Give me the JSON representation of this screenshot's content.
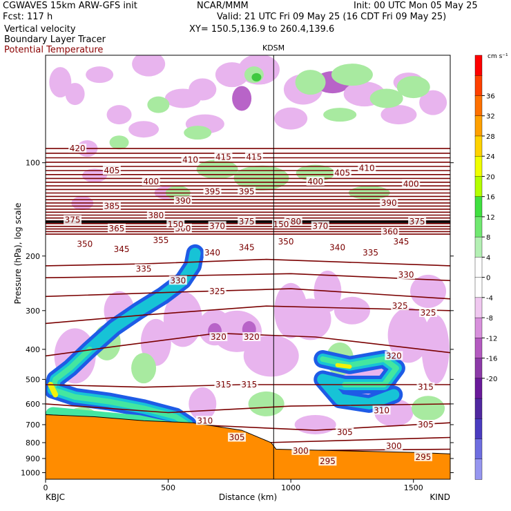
{
  "header": {
    "model": "CGWAVES 15km ARW-GFS init",
    "fcst": "Fcst:  117 h",
    "field1": "Vertical velocity",
    "field2": "Boundary Layer Tracer",
    "field3": "Potential Temperature",
    "org": "NCAR/MMM",
    "init": "Init: 00 UTC Mon 05 May 25",
    "valid": "Valid: 21 UTC Fri 09 May 25 (16 CDT Fri 09 May 25)",
    "xy": "XY= 150.5,136.9 to 260.4,139.6",
    "station_label": "KDSM"
  },
  "colors": {
    "theta": "#7a0000",
    "tracer_blue": "#1e5be6",
    "tracer_cyan": "#17c3d6",
    "tracer_green": "#44e6a0",
    "tracer_yellow": "#f2f20a",
    "terrain": "#ff8c00",
    "down_light": "#e8b4ee",
    "down_mid": "#b864c8",
    "up_light": "#a8eaa0",
    "up_mid": "#40c840"
  },
  "chart_data": {
    "type": "cross-section",
    "xlabel": "Distance (km)",
    "ylabel": "Pressure (hPa), log scale",
    "xlim": [
      0,
      1650
    ],
    "ylim": [
      1050,
      45
    ],
    "y_scale": "log",
    "xticks": [
      0,
      500,
      1000,
      1500
    ],
    "xtick_labels": [
      "0",
      "500",
      "1000",
      "1500"
    ],
    "yticks": [
      100,
      200,
      300,
      400,
      500,
      600,
      700,
      800,
      900,
      1000
    ],
    "ytick_labels": [
      "100",
      "200",
      "300",
      "400",
      "500",
      "600",
      "700",
      "800",
      "900",
      "1000"
    ],
    "left_station": "KBJC",
    "right_station": "KIND",
    "mid_station": "KDSM",
    "mid_station_x": 930,
    "colorbar": {
      "units": "cm s⁻¹",
      "labels": [
        "36",
        "32",
        "28",
        "24",
        "20",
        "16",
        "12",
        "8",
        "4",
        "0",
        "-4",
        "-8",
        "-12",
        "-16",
        "-20"
      ],
      "colors": [
        "#ff0000",
        "#ff4000",
        "#ff7000",
        "#ffa000",
        "#ffd200",
        "#f0ff00",
        "#b4ff00",
        "#40e040",
        "#70e870",
        "#b4f0b4",
        "#ffffff",
        "#ffffff",
        "#f0c8f0",
        "#d890dc",
        "#b45ac0",
        "#8c3aa8",
        "#6a1a9a",
        "#5028a0",
        "#4a3cc0",
        "#6e6ee0",
        "#9696f0"
      ]
    },
    "theta_labels": [
      {
        "x": 130,
        "p": 90,
        "t": "420"
      },
      {
        "x": 270,
        "p": 106,
        "t": "405"
      },
      {
        "x": 430,
        "p": 115,
        "t": "400"
      },
      {
        "x": 590,
        "p": 98,
        "t": "410"
      },
      {
        "x": 725,
        "p": 96,
        "t": "415"
      },
      {
        "x": 850,
        "p": 96,
        "t": "415"
      },
      {
        "x": 1100,
        "p": 115,
        "t": "400"
      },
      {
        "x": 1210,
        "p": 108,
        "t": "405"
      },
      {
        "x": 1310,
        "p": 104,
        "t": "410"
      },
      {
        "x": 1490,
        "p": 117,
        "t": "400"
      },
      {
        "x": 270,
        "p": 138,
        "t": "385"
      },
      {
        "x": 450,
        "p": 148,
        "t": "380"
      },
      {
        "x": 560,
        "p": 133,
        "t": "390"
      },
      {
        "x": 680,
        "p": 124,
        "t": "395"
      },
      {
        "x": 820,
        "p": 124,
        "t": "395"
      },
      {
        "x": 1400,
        "p": 135,
        "t": "390"
      },
      {
        "x": 110,
        "p": 153,
        "t": "375"
      },
      {
        "x": 290,
        "p": 163,
        "t": "365"
      },
      {
        "x": 560,
        "p": 163,
        "t": "360"
      },
      {
        "x": 700,
        "p": 160,
        "t": "370"
      },
      {
        "x": 820,
        "p": 155,
        "t": "375"
      },
      {
        "x": 1010,
        "p": 155,
        "t": "380"
      },
      {
        "x": 1120,
        "p": 160,
        "t": "370"
      },
      {
        "x": 1405,
        "p": 167,
        "t": "360"
      },
      {
        "x": 1515,
        "p": 155,
        "t": "375"
      },
      {
        "x": 160,
        "p": 183,
        "t": "350"
      },
      {
        "x": 310,
        "p": 190,
        "t": "345"
      },
      {
        "x": 470,
        "p": 178,
        "t": "355"
      },
      {
        "x": 680,
        "p": 195,
        "t": "340"
      },
      {
        "x": 820,
        "p": 188,
        "t": "345"
      },
      {
        "x": 980,
        "p": 180,
        "t": "350"
      },
      {
        "x": 1190,
        "p": 188,
        "t": "340"
      },
      {
        "x": 1325,
        "p": 195,
        "t": "335"
      },
      {
        "x": 1450,
        "p": 180,
        "t": "345"
      },
      {
        "x": 400,
        "p": 220,
        "t": "335"
      },
      {
        "x": 540,
        "p": 240,
        "t": "330"
      },
      {
        "x": 700,
        "p": 260,
        "t": "325"
      },
      {
        "x": 1470,
        "p": 230,
        "t": "330"
      },
      {
        "x": 1445,
        "p": 290,
        "t": "325"
      },
      {
        "x": 1560,
        "p": 305,
        "t": "325"
      },
      {
        "x": 705,
        "p": 365,
        "t": "320"
      },
      {
        "x": 840,
        "p": 365,
        "t": "320"
      },
      {
        "x": 1420,
        "p": 420,
        "t": "320"
      },
      {
        "x": 725,
        "p": 520,
        "t": "315"
      },
      {
        "x": 830,
        "p": 520,
        "t": "315"
      },
      {
        "x": 1550,
        "p": 530,
        "t": "315"
      },
      {
        "x": 650,
        "p": 680,
        "t": "310"
      },
      {
        "x": 1370,
        "p": 630,
        "t": "310"
      },
      {
        "x": 780,
        "p": 770,
        "t": "305"
      },
      {
        "x": 1220,
        "p": 740,
        "t": "305"
      },
      {
        "x": 1550,
        "p": 700,
        "t": "305"
      },
      {
        "x": 1040,
        "p": 850,
        "t": "300"
      },
      {
        "x": 1420,
        "p": 820,
        "t": "300"
      },
      {
        "x": 1150,
        "p": 920,
        "t": "295"
      },
      {
        "x": 1540,
        "p": 890,
        "t": "295"
      },
      {
        "x": 530,
        "p": 158,
        "t": "150"
      },
      {
        "x": 960,
        "p": 158,
        "t": "150"
      }
    ]
  }
}
